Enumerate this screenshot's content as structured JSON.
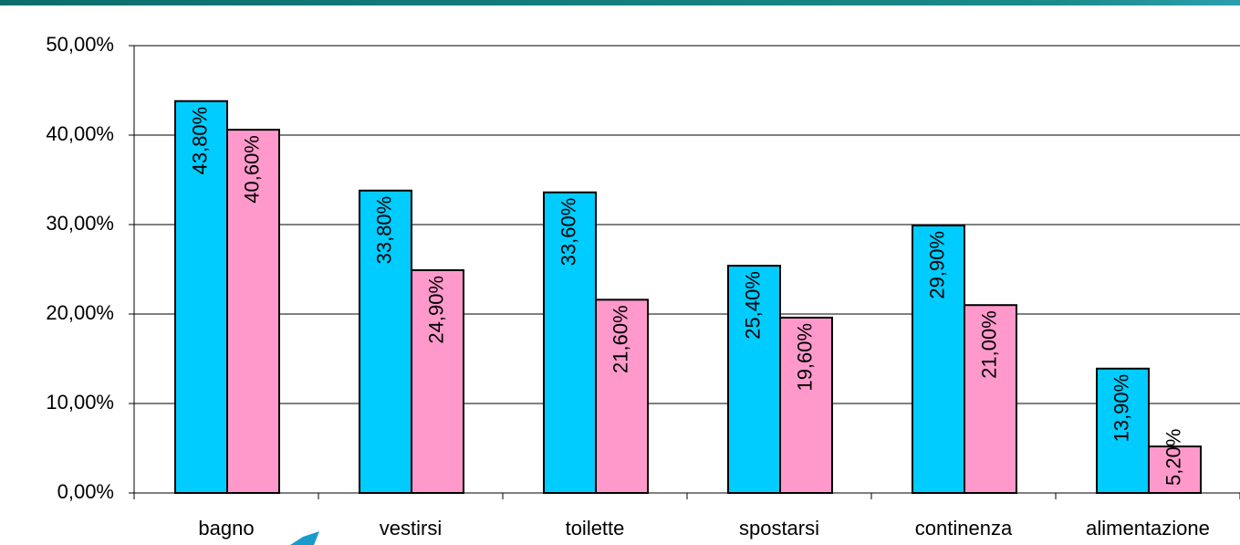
{
  "chart_data": {
    "type": "bar",
    "categories": [
      "bagno",
      "vestirsi",
      "toilette",
      "spostarsi",
      "continenza",
      "alimentazione"
    ],
    "series": [
      {
        "color": "#00ccff",
        "values": [
          43.8,
          33.8,
          33.6,
          25.4,
          29.9,
          13.9
        ],
        "value_labels": [
          "43,80%",
          "33,80%",
          "33,60%",
          "25,40%",
          "29,90%",
          "13,90%"
        ]
      },
      {
        "color": "#ff99cc",
        "values": [
          40.6,
          24.9,
          21.6,
          19.6,
          21.0,
          5.2
        ],
        "value_labels": [
          "40,60%",
          "24,90%",
          "21,60%",
          "19,60%",
          "21,00%",
          "5,20%"
        ]
      }
    ],
    "ylim": [
      0,
      50
    ],
    "yticks": [
      {
        "value": 0,
        "label": "0,00%"
      },
      {
        "value": 10,
        "label": "10,00%"
      },
      {
        "value": 20,
        "label": "20,00%"
      },
      {
        "value": 30,
        "label": "30,00%"
      },
      {
        "value": 40,
        "label": "40,00%"
      },
      {
        "value": 50,
        "label": "50,00%"
      }
    ],
    "grid": true
  }
}
